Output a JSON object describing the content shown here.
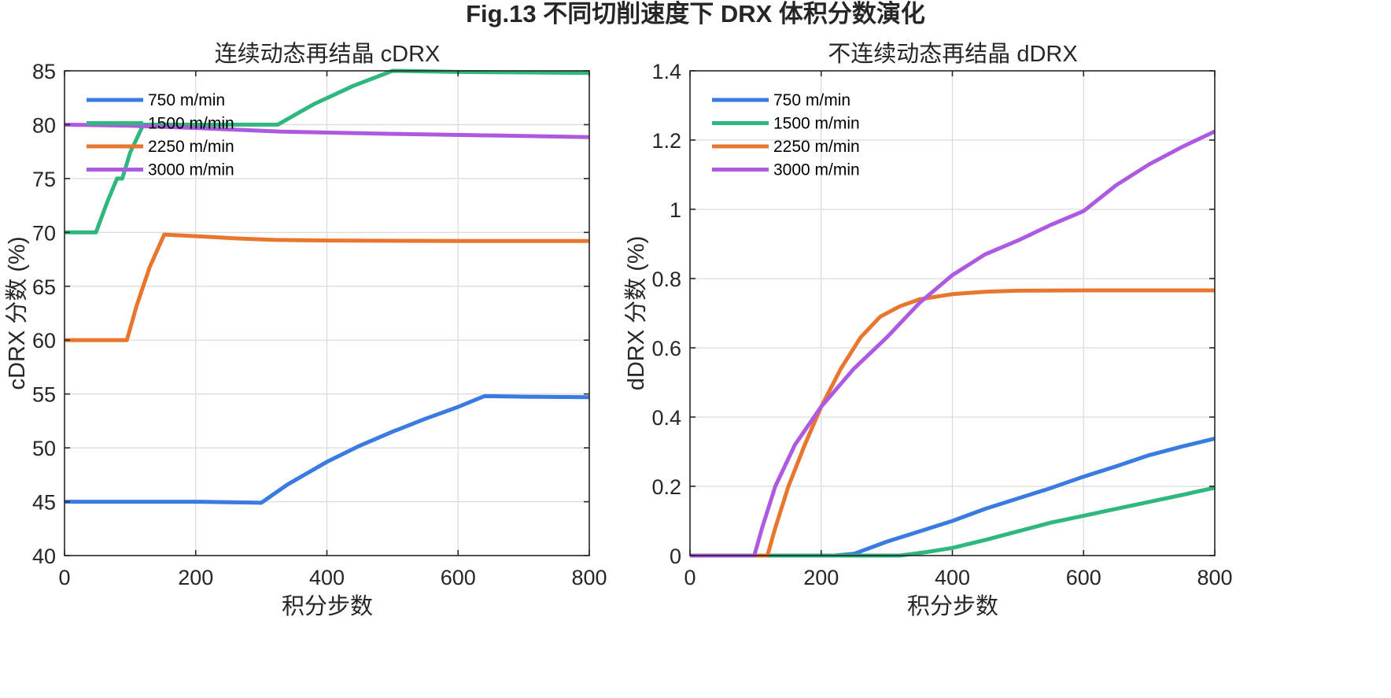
{
  "figure_title": "Fig.13  不同切削速度下 DRX 体积分数演化",
  "colors": {
    "750": "#3a7be2",
    "1500": "#2eb87e",
    "2250": "#e9762f",
    "3000": "#ad5ae0"
  },
  "chart_data": [
    {
      "type": "line",
      "title": "连续动态再结晶 cDRX",
      "xlabel": "积分步数",
      "ylabel": "cDRX 分数 (%)",
      "xlim": [
        0,
        800
      ],
      "ylim": [
        40,
        85
      ],
      "xticks": [
        0,
        200,
        400,
        600,
        800
      ],
      "xtick_labels": [
        "0",
        "200",
        "400",
        "600",
        "800"
      ],
      "yticks": [
        40,
        45,
        50,
        55,
        60,
        65,
        70,
        75,
        80,
        85
      ],
      "ytick_labels": [
        "40",
        "45",
        "50",
        "55",
        "60",
        "65",
        "70",
        "75",
        "80",
        "85"
      ],
      "grid": true,
      "legend_position": "top-left",
      "series": [
        {
          "name": "750 m/min",
          "color_key": "750",
          "x": [
            0,
            200,
            300,
            340,
            400,
            450,
            500,
            550,
            600,
            640,
            700,
            800
          ],
          "y": [
            45,
            45,
            44.9,
            46.6,
            48.7,
            50.2,
            51.5,
            52.7,
            53.8,
            54.8,
            54.75,
            54.7
          ]
        },
        {
          "name": "1500 m/min",
          "color_key": "1500",
          "x": [
            0,
            48,
            65,
            80,
            88,
            100,
            120,
            150,
            200,
            325,
            380,
            440,
            500,
            600,
            800
          ],
          "y": [
            70,
            70,
            72.8,
            75,
            75,
            77.4,
            80,
            80,
            80,
            80,
            81.9,
            83.6,
            85,
            84.9,
            84.8
          ]
        },
        {
          "name": "2250 m/min",
          "color_key": "2250",
          "x": [
            0,
            95,
            110,
            130,
            152,
            200,
            260,
            320,
            400,
            600,
            800
          ],
          "y": [
            60,
            60,
            63.2,
            66.8,
            69.8,
            69.65,
            69.45,
            69.3,
            69.25,
            69.2,
            69.2
          ]
        },
        {
          "name": "3000 m/min",
          "color_key": "3000",
          "x": [
            0,
            100,
            200,
            330,
            500,
            650,
            800
          ],
          "y": [
            80,
            79.9,
            79.7,
            79.35,
            79.15,
            79.0,
            78.85
          ]
        }
      ]
    },
    {
      "type": "line",
      "title": "不连续动态再结晶 dDRX",
      "xlabel": "积分步数",
      "ylabel": "dDRX 分数 (%)",
      "xlim": [
        0,
        800
      ],
      "ylim": [
        0,
        1.4
      ],
      "xticks": [
        0,
        200,
        400,
        600,
        800
      ],
      "xtick_labels": [
        "0",
        "200",
        "400",
        "600",
        "800"
      ],
      "yticks": [
        0,
        0.2,
        0.4,
        0.6,
        0.8,
        1.0,
        1.2,
        1.4
      ],
      "ytick_labels": [
        "0",
        "0.2",
        "0.4",
        "0.6",
        "0.8",
        "1",
        "1.2",
        "1.4"
      ],
      "grid": true,
      "legend_position": "top-left",
      "series": [
        {
          "name": "750 m/min",
          "color_key": "750",
          "x": [
            0,
            220,
            250,
            300,
            350,
            400,
            450,
            500,
            550,
            600,
            650,
            700,
            750,
            800
          ],
          "y": [
            0,
            0,
            0.005,
            0.04,
            0.07,
            0.1,
            0.135,
            0.165,
            0.195,
            0.228,
            0.258,
            0.29,
            0.315,
            0.338
          ]
        },
        {
          "name": "1500 m/min",
          "color_key": "1500",
          "x": [
            0,
            120,
            320,
            360,
            400,
            450,
            500,
            550,
            600,
            650,
            700,
            750,
            800
          ],
          "y": [
            0,
            0,
            0,
            0.01,
            0.022,
            0.045,
            0.07,
            0.095,
            0.115,
            0.135,
            0.155,
            0.175,
            0.196
          ]
        },
        {
          "name": "2250 m/min",
          "color_key": "2250",
          "x": [
            0,
            118,
            130,
            150,
            175,
            200,
            230,
            260,
            290,
            320,
            350,
            400,
            450,
            500,
            600,
            700,
            800
          ],
          "y": [
            0,
            0,
            0.08,
            0.2,
            0.32,
            0.43,
            0.54,
            0.63,
            0.69,
            0.72,
            0.74,
            0.755,
            0.762,
            0.765,
            0.766,
            0.766,
            0.766
          ]
        },
        {
          "name": "3000 m/min",
          "color_key": "3000",
          "x": [
            0,
            98,
            110,
            130,
            160,
            200,
            250,
            300,
            350,
            400,
            450,
            500,
            550,
            600,
            650,
            700,
            750,
            800
          ],
          "y": [
            0,
            0,
            0.08,
            0.2,
            0.32,
            0.43,
            0.54,
            0.63,
            0.73,
            0.81,
            0.87,
            0.91,
            0.955,
            0.995,
            1.07,
            1.13,
            1.18,
            1.225
          ]
        }
      ]
    }
  ]
}
